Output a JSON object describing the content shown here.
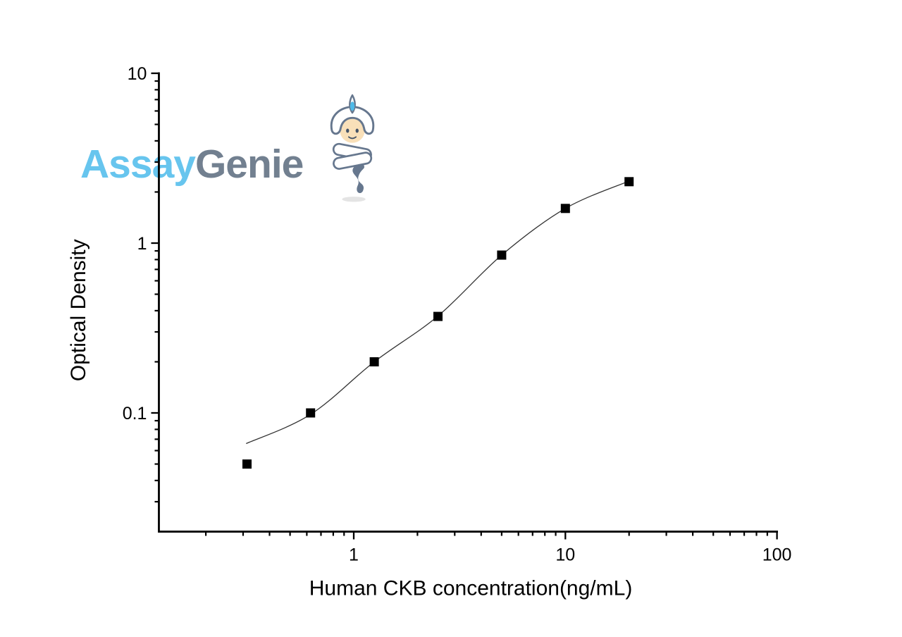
{
  "watermark": {
    "brand_part1": "Assay",
    "brand_part2": "Genie",
    "brand_color1": "#5FC2EE",
    "brand_color2": "#6B7A8B",
    "mascot_icon": "genie-mascot",
    "mascot_colors": {
      "outline": "#5E7089",
      "skin": "#F9DFB6",
      "gem": "#45B7E8",
      "shadow": "#CFCFCF",
      "white": "#FFFFFF"
    }
  },
  "chart_data": {
    "type": "scatter",
    "title": "",
    "xlabel": "Human CKB concentration(ng/mL)",
    "ylabel": "Optical Density",
    "x_scale": "log",
    "y_scale": "log",
    "xlim": [
      0.12,
      100
    ],
    "ylim": [
      0.02,
      10
    ],
    "grid": false,
    "legend": "none",
    "x_major_ticks": [
      {
        "value": 1,
        "label": "1"
      },
      {
        "value": 10,
        "label": "10"
      },
      {
        "value": 100,
        "label": "100"
      }
    ],
    "y_major_ticks": [
      {
        "value": 10,
        "label": "10"
      },
      {
        "value": 1,
        "label": "1"
      },
      {
        "value": 0.1,
        "label": "0.1"
      }
    ],
    "series": [
      {
        "name": "standard-points",
        "type": "scatter",
        "marker": "square",
        "marker_size": 13,
        "color": "#000000",
        "x": [
          0.313,
          0.625,
          1.25,
          2.5,
          5,
          10,
          20
        ],
        "y": [
          0.05,
          0.1,
          0.2,
          0.37,
          0.85,
          1.6,
          2.3
        ]
      },
      {
        "name": "4pl-fit-curve",
        "type": "line",
        "color": "#333333",
        "width": 1.3,
        "x": [
          0.31,
          0.625,
          1.25,
          2.5,
          5,
          10,
          20
        ],
        "y": [
          0.066,
          0.098,
          0.2,
          0.372,
          0.85,
          1.6,
          2.32
        ]
      }
    ]
  }
}
